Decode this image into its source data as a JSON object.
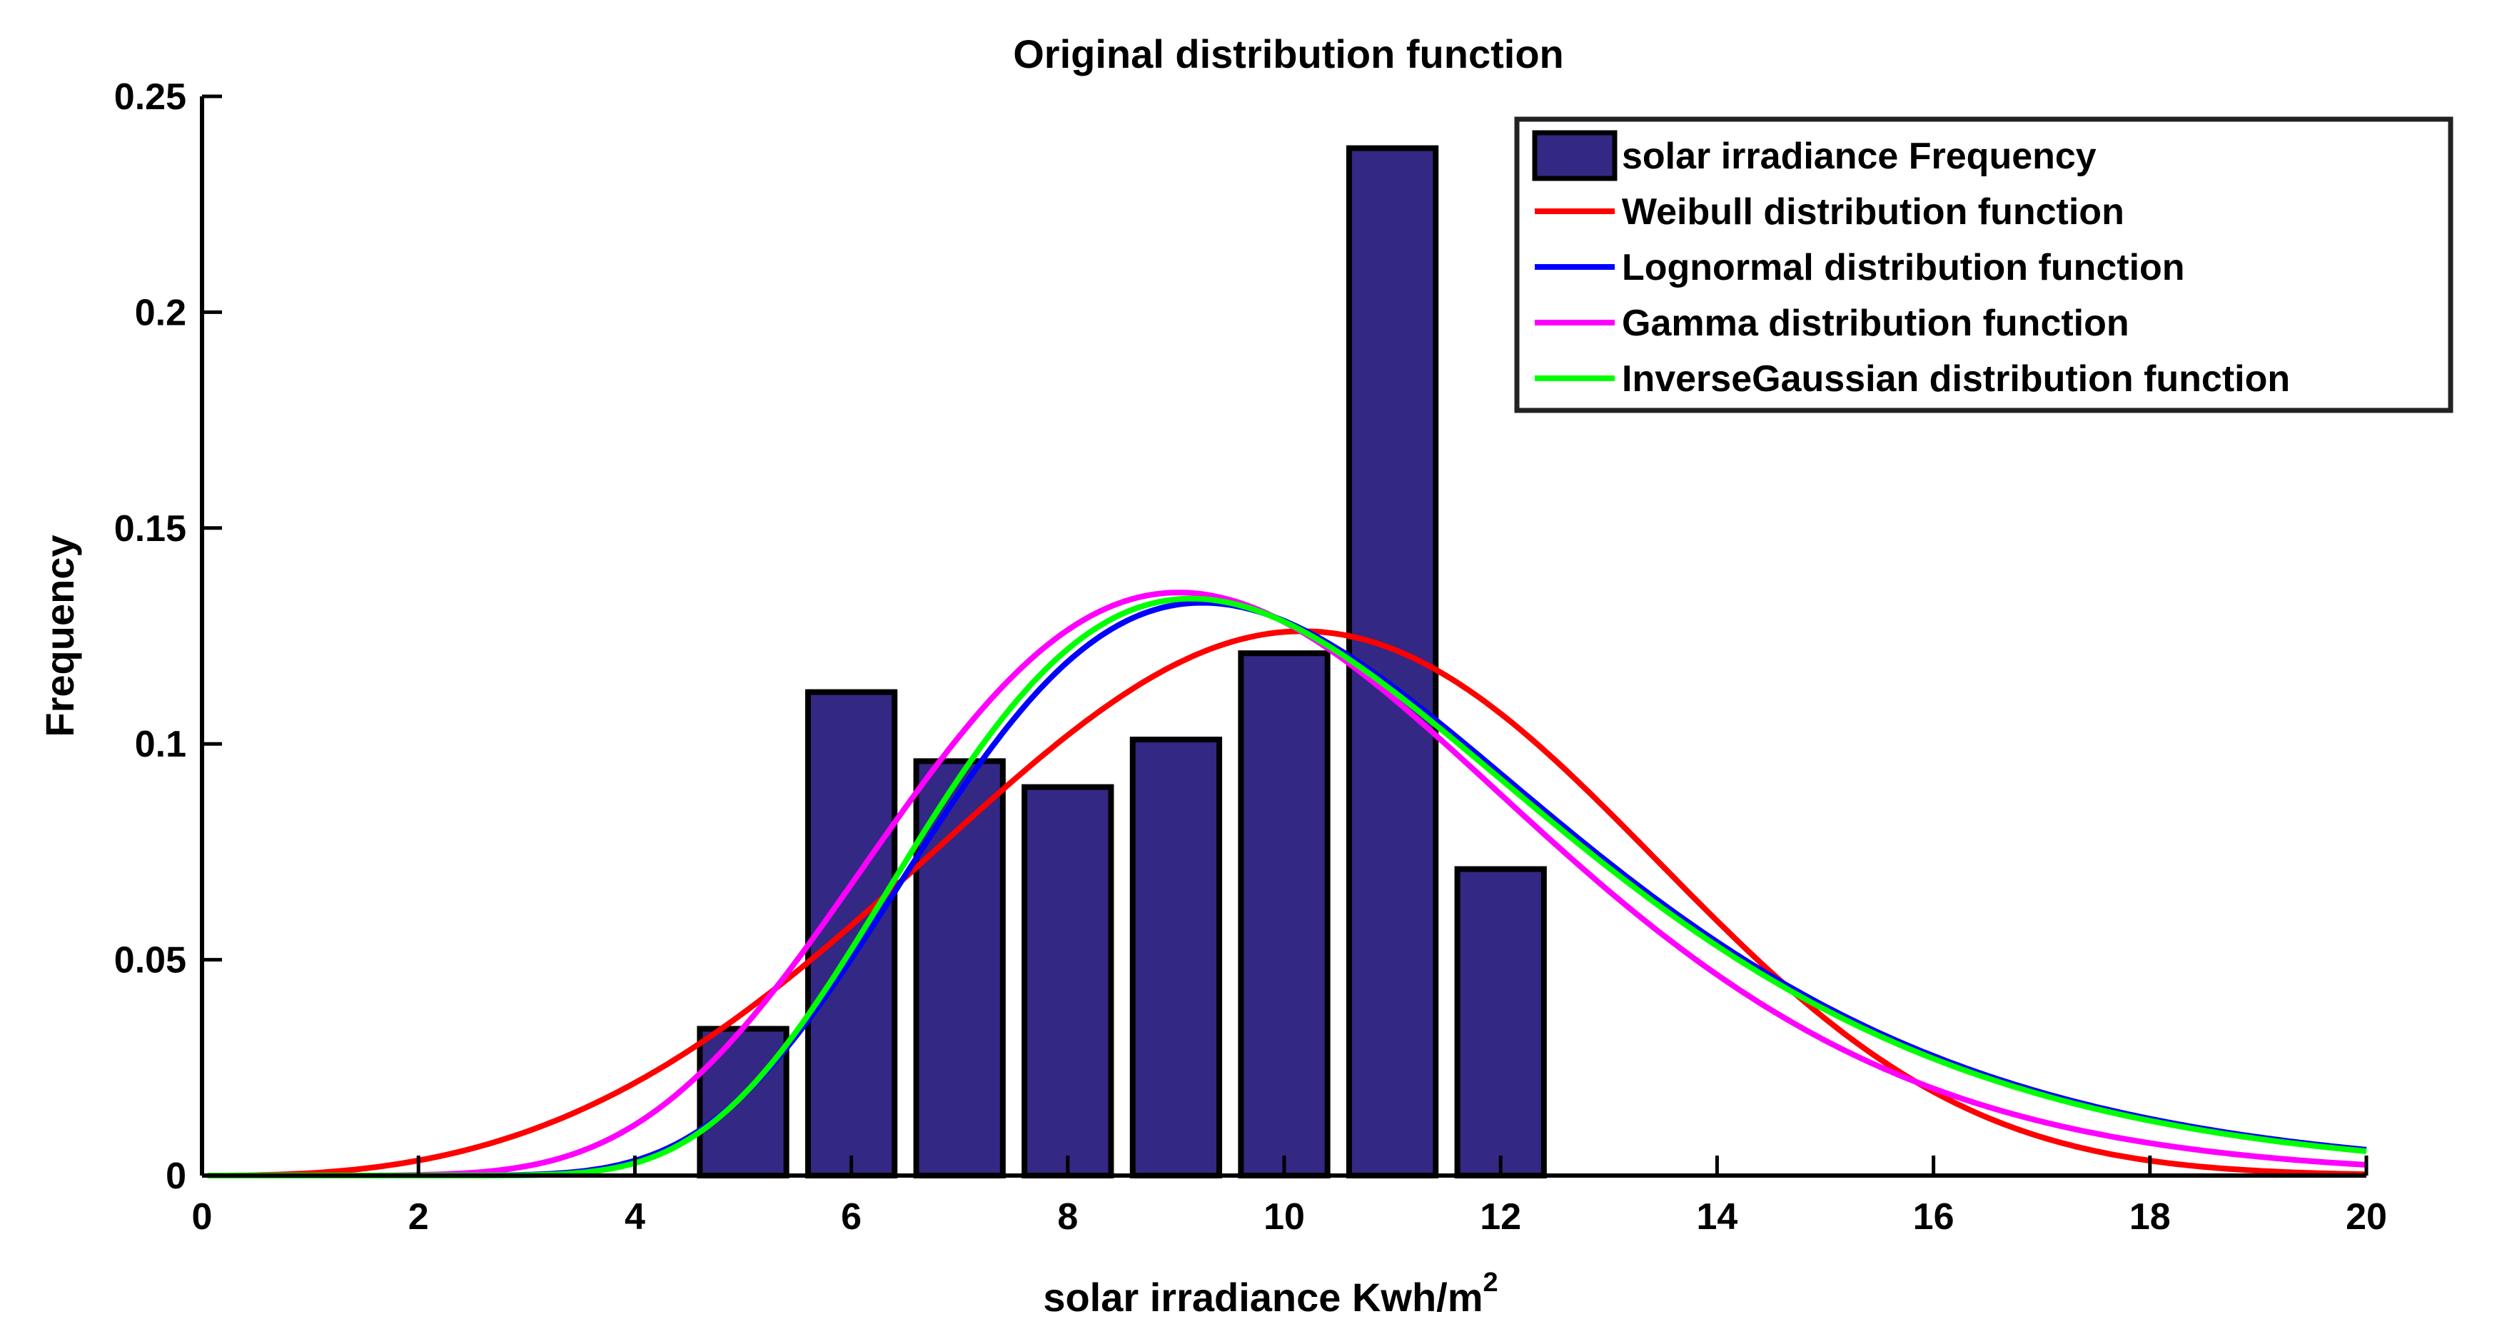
{
  "chart_data": {
    "type": "bar",
    "title": "Original distribution function",
    "xlabel": "solar irradiance Kwh/m",
    "xlabel_superscript": "2",
    "ylabel": "Frequency",
    "xlim": [
      0,
      20
    ],
    "ylim": [
      0,
      0.25
    ],
    "xticks": [
      0,
      2,
      4,
      6,
      8,
      10,
      12,
      14,
      16,
      18,
      20
    ],
    "yticks": [
      0,
      0.05,
      0.1,
      0.15,
      0.2,
      0.25
    ],
    "xtick_labels": [
      "0",
      "2",
      "4",
      "6",
      "8",
      "10",
      "12",
      "14",
      "16",
      "18",
      "20"
    ],
    "ytick_labels": [
      "0",
      "0.05",
      "0.1",
      "0.15",
      "0.2",
      "0.25"
    ],
    "legend_position": "top-right",
    "bar_series": {
      "name": "solar irradiance Frequency",
      "color": "#332883",
      "edge_color": "#000000",
      "bin_width": 0.8,
      "centers": [
        5,
        6,
        7,
        8,
        9,
        10,
        11,
        12
      ],
      "values": [
        0.034,
        0.112,
        0.096,
        0.09,
        0.101,
        0.121,
        0.238,
        0.071
      ]
    },
    "series": [
      {
        "name": "Weibull distribution function",
        "color": "#ff0000",
        "dist": "weibull",
        "params": {
          "k": 3.65,
          "lambda": 11.1
        }
      },
      {
        "name": " Lognormal distribution function",
        "color": "#0000ff",
        "dist": "lognormal",
        "params": {
          "mu": 2.32,
          "sigma": 0.31
        }
      },
      {
        "name": "Gamma distribution function",
        "color": "#ff00ff",
        "dist": "gamma",
        "params": {
          "k": 10.5,
          "theta": 0.95
        }
      },
      {
        "name": " InverseGaussian distribution function",
        "color": "#00ff00",
        "dist": "invgauss",
        "params": {
          "mu": 10.6,
          "lambda": 107
        }
      }
    ]
  }
}
